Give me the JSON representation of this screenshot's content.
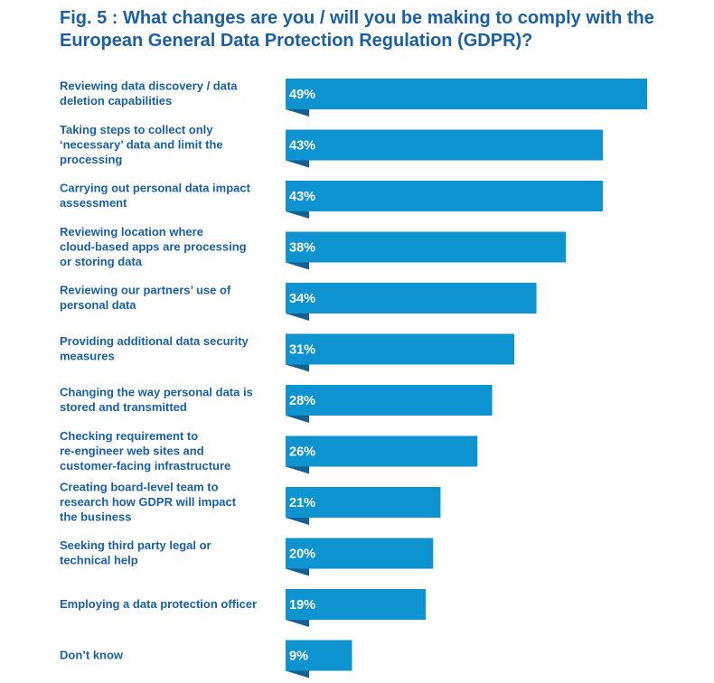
{
  "title_lines": [
    "Fig. 5 : What changes are you / will you be making to comply with the",
    "European General Data Protection Regulation (GDPR)?"
  ],
  "colors": {
    "bar": "#0d93cf",
    "bar_tab": "#155f92",
    "text": "#1b5fa0"
  },
  "chart_data": {
    "type": "bar",
    "orientation": "horizontal",
    "title": "Fig. 5 : What changes are you / will you be making to comply with the European General Data Protection Regulation (GDPR)?",
    "xlabel": "",
    "ylabel": "",
    "xlim": [
      0,
      49
    ],
    "categories": [
      [
        "Reviewing data discovery / data",
        "deletion capabilities"
      ],
      [
        "Taking steps to collect only",
        "‘necessary’ data and limit the",
        "processing"
      ],
      [
        "Carrying out personal data impact",
        "assessment"
      ],
      [
        "Reviewing location where",
        "cloud-based apps are processing",
        "or storing data"
      ],
      [
        "Reviewing our partners’ use of",
        "personal data"
      ],
      [
        "Providing additional data security",
        "measures"
      ],
      [
        "Changing the way personal data is",
        "stored and transmitted"
      ],
      [
        "Checking requirement to",
        "re-engineer web sites and",
        "customer-facing infrastructure"
      ],
      [
        "Creating board-level team to",
        "research how GDPR will impact",
        "the business"
      ],
      [
        "Seeking third party legal or",
        "technical help"
      ],
      [
        "Employing a data protection officer"
      ],
      [
        "Don’t know"
      ]
    ],
    "values": [
      49,
      43,
      43,
      38,
      34,
      31,
      28,
      26,
      21,
      20,
      19,
      9
    ],
    "value_labels": [
      "49%",
      "43%",
      "43%",
      "38%",
      "34%",
      "31%",
      "28%",
      "26%",
      "21%",
      "20%",
      "19%",
      "9%"
    ]
  }
}
